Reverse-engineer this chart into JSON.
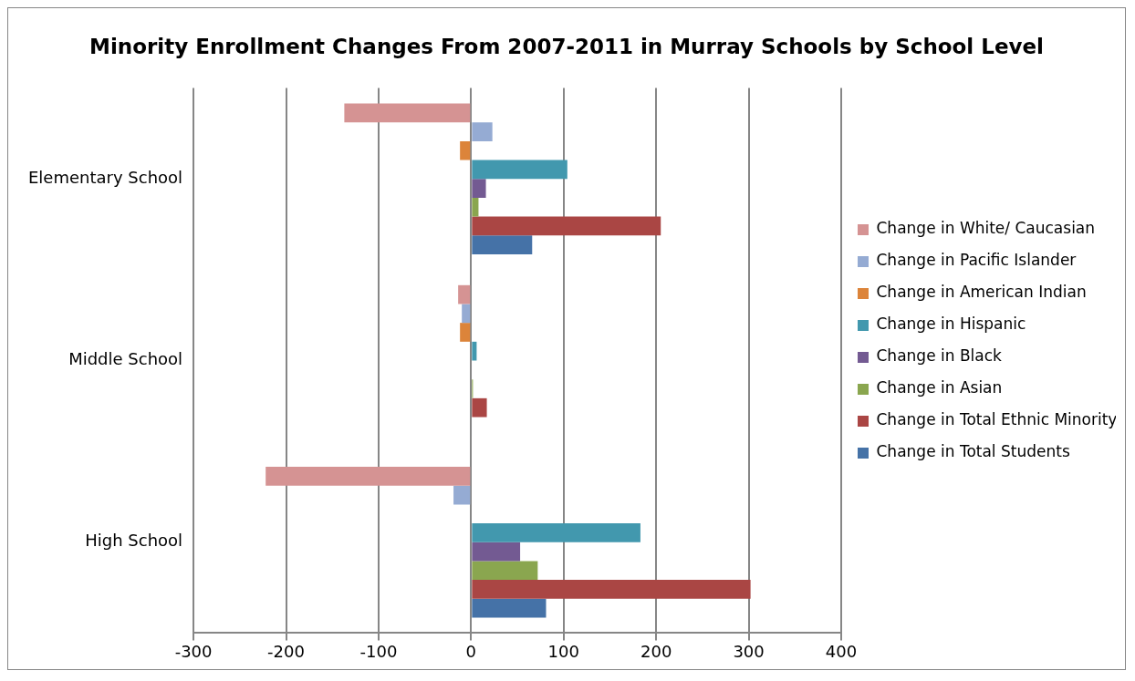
{
  "chart_data": {
    "type": "bar",
    "orientation": "horizontal",
    "title": "Minority Enrollment Changes From 2007-2011 in Murray Schools by School Level",
    "categories": [
      "Elementary School",
      "Middle School",
      "High School"
    ],
    "series": [
      {
        "name": "Change in White/ Caucasian",
        "color": "#d59393",
        "values": [
          -137,
          -14,
          -222
        ]
      },
      {
        "name": "Change in Pacific Islander",
        "color": "#95abd3",
        "values": [
          23,
          -10,
          -19
        ]
      },
      {
        "name": "Change in American Indian",
        "color": "#dc843a",
        "values": [
          -12,
          -12,
          0
        ]
      },
      {
        "name": "Change in Hispanic",
        "color": "#4298ae",
        "values": [
          104,
          6,
          183
        ]
      },
      {
        "name": "Change in Black",
        "color": "#735a92",
        "values": [
          16,
          1,
          53
        ]
      },
      {
        "name": "Change in Asian",
        "color": "#8aa64f",
        "values": [
          8,
          2,
          72
        ]
      },
      {
        "name": "Change in Total Ethnic Minority",
        "color": "#aa4644",
        "values": [
          205,
          17,
          302
        ]
      },
      {
        "name": "Change in Total Students",
        "color": "#4572a7",
        "values": [
          66,
          1,
          81
        ]
      }
    ],
    "xlim": [
      -300,
      400
    ],
    "xticks": [
      -300,
      -200,
      -100,
      0,
      100,
      200,
      300,
      400
    ],
    "grid": "x",
    "legend": "right"
  }
}
